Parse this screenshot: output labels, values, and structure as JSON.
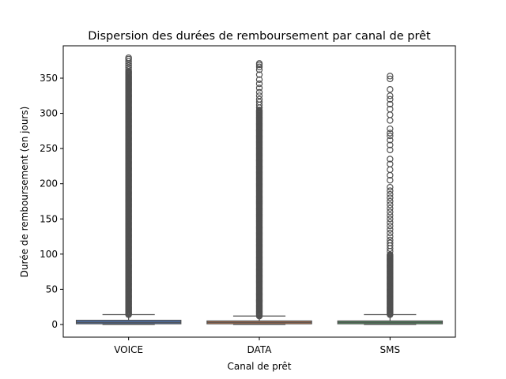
{
  "chart_data": {
    "type": "box",
    "title": "Dispersion des durées de remboursement par canal de prêt",
    "xlabel": "Canal de prêt",
    "ylabel": "Durée de remboursement (en jours)",
    "categories": [
      "VOICE",
      "DATA",
      "SMS"
    ],
    "ylim": [
      -18,
      396
    ],
    "yticks": [
      0,
      50,
      100,
      150,
      200,
      250,
      300,
      350
    ],
    "grid": false,
    "boxes": [
      {
        "category": "VOICE",
        "color": "#4c72b0",
        "min": 0,
        "q1": 1,
        "median": 3,
        "q3": 6,
        "whisker_high": 14,
        "outliers_dense_range": [
          14,
          360
        ],
        "outliers_sparse": [
          362,
          365,
          368,
          371,
          374,
          377,
          379
        ]
      },
      {
        "category": "DATA",
        "color": "#dd8452",
        "min": 0,
        "q1": 1,
        "median": 3,
        "q3": 5,
        "whisker_high": 12,
        "outliers_dense_range": [
          12,
          305
        ],
        "outliers_sparse": [
          308,
          312,
          316,
          320,
          325,
          330,
          336,
          342,
          348,
          355,
          362,
          366,
          369,
          371
        ]
      },
      {
        "category": "SMS",
        "color": "#55a868",
        "min": 0,
        "q1": 1,
        "median": 3,
        "q3": 5,
        "whisker_high": 14,
        "outliers_dense_range": [
          14,
          100
        ],
        "outliers_sparse": [
          104,
          108,
          112,
          116,
          120,
          125,
          130,
          135,
          140,
          145,
          150,
          155,
          160,
          165,
          170,
          175,
          180,
          185,
          190,
          195,
          205,
          212,
          220,
          228,
          235,
          248,
          255,
          262,
          268,
          272,
          278,
          290,
          298,
          306,
          313,
          320,
          325,
          334,
          349,
          353
        ]
      }
    ]
  },
  "colors": {
    "outlier_stroke": "#505050",
    "axis": "#000000"
  }
}
